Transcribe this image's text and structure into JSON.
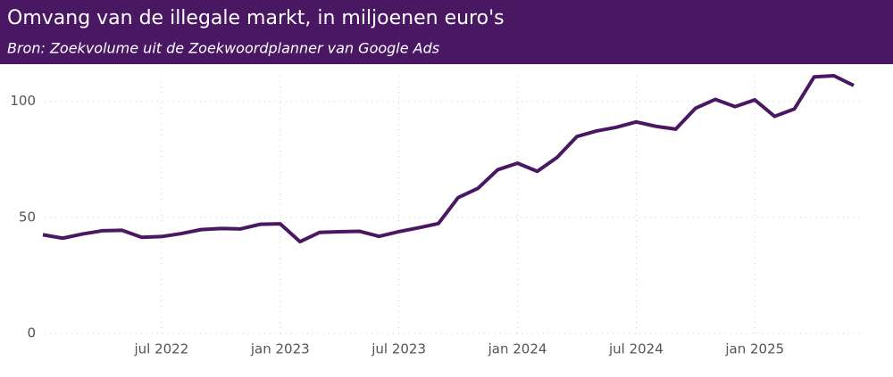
{
  "chart_data": {
    "type": "line",
    "title": "Omvang van de illegale markt, in miljoenen euro's",
    "subtitle": "Bron: Zoekvolume uit de Zoekwoordplanner van Google Ads",
    "x": [
      "2022-01",
      "2022-02",
      "2022-03",
      "2022-04",
      "2022-05",
      "2022-06",
      "2022-07",
      "2022-08",
      "2022-09",
      "2022-10",
      "2022-11",
      "2022-12",
      "2023-01",
      "2023-02",
      "2023-03",
      "2023-04",
      "2023-05",
      "2023-06",
      "2023-07",
      "2023-08",
      "2023-09",
      "2023-10",
      "2023-11",
      "2023-12",
      "2024-01",
      "2024-02",
      "2024-03",
      "2024-04",
      "2024-05",
      "2024-06",
      "2024-07",
      "2024-08",
      "2024-09",
      "2024-10",
      "2024-11",
      "2024-12",
      "2025-01",
      "2025-02",
      "2025-03",
      "2025-04",
      "2025-05",
      "2025-06"
    ],
    "series": [
      {
        "color": "#4a1763",
        "values": [
          42.5,
          41,
          42.8,
          44.2,
          44.4,
          41.4,
          41.7,
          43,
          44.7,
          45.2,
          45,
          47,
          47.2,
          39.5,
          43.5,
          43.8,
          44,
          41.8,
          43.8,
          45.5,
          47.3,
          58.5,
          62.5,
          70.5,
          73.3,
          69.8,
          75.8,
          84.8,
          87.2,
          88.8,
          91.1,
          89.2,
          88,
          97,
          100.8,
          97.7,
          100.6,
          93.5,
          96.7,
          110.5,
          111,
          106.8
        ]
      }
    ],
    "xlim": [
      "2022-01",
      "2025-06"
    ],
    "xticks": [
      {
        "value": "2022-07",
        "label": "jul 2022"
      },
      {
        "value": "2023-01",
        "label": "jan 2023"
      },
      {
        "value": "2023-07",
        "label": "jul 2023"
      },
      {
        "value": "2024-01",
        "label": "jan 2024"
      },
      {
        "value": "2024-07",
        "label": "jul 2024"
      },
      {
        "value": "2025-01",
        "label": "jan 2025"
      }
    ],
    "ylim": [
      0,
      111
    ],
    "yticks": [
      0,
      50,
      100
    ],
    "grid": true
  }
}
